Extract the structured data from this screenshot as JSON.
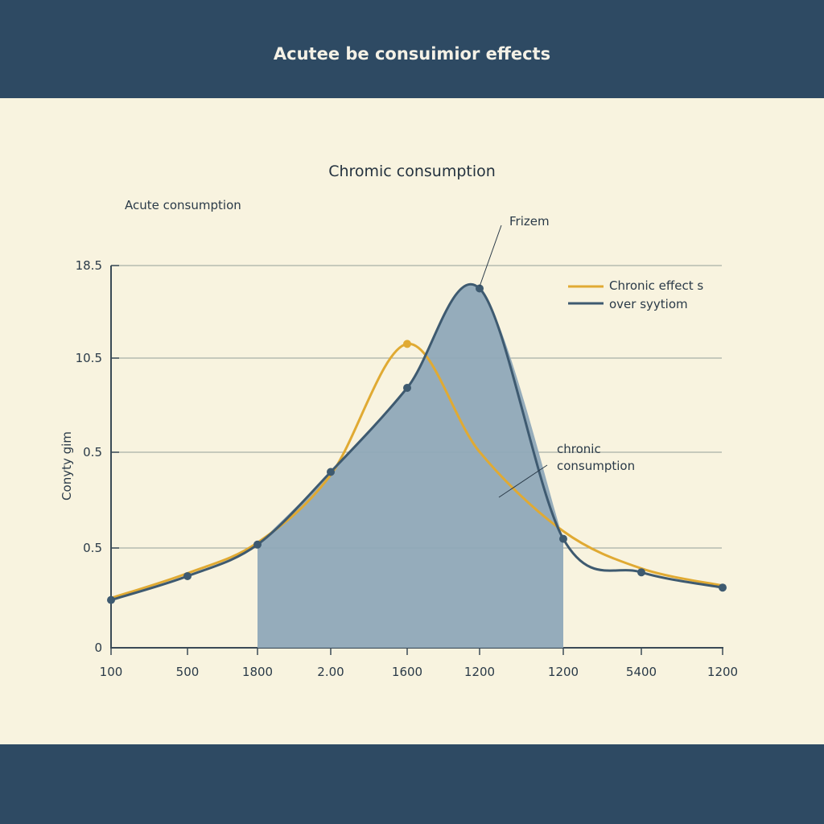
{
  "header": {
    "title": "Acutee be consuimior effects"
  },
  "chart_data": {
    "type": "line",
    "title": "Chromic consumption",
    "subtitle": "Acute consumption",
    "ylabel": "Conyty gim",
    "xlabel": "",
    "x_tick_labels": [
      "100",
      "500",
      "1800",
      "2.00",
      "1600",
      "1200",
      "1200",
      "5400",
      "1200"
    ],
    "y_tick_labels": [
      "0",
      "0.5",
      "0.5",
      "10.5",
      "18.5"
    ],
    "grid": "horizontal",
    "legend_position": "top-right",
    "legend": [
      "Chronic effect s",
      "over syytiom"
    ],
    "series": [
      {
        "name": "Chronic effect s",
        "color": "#e0aa33",
        "values": [
          0.52,
          0.78,
          1.1,
          1.81,
          3.18,
          2.05,
          1.22,
          0.83,
          0.65
        ]
      },
      {
        "name": "over syytiom",
        "color": "#3e5a70",
        "values": [
          0.5,
          0.75,
          1.08,
          1.84,
          2.72,
          3.76,
          1.14,
          0.79,
          0.63
        ],
        "shaded_range": [
          "1800",
          "1200"
        ],
        "fill": "#8fa8b8"
      }
    ],
    "note": "y values expressed in gridline levels (0 to 4) since the printed tick labels are non-monotonic",
    "annotations": [
      {
        "text": "Frizem",
        "target_series": "over syytiom",
        "target_index": 5
      },
      {
        "text": "chronic consumption",
        "target_series": "over syytiom",
        "target_index": 6
      }
    ]
  }
}
